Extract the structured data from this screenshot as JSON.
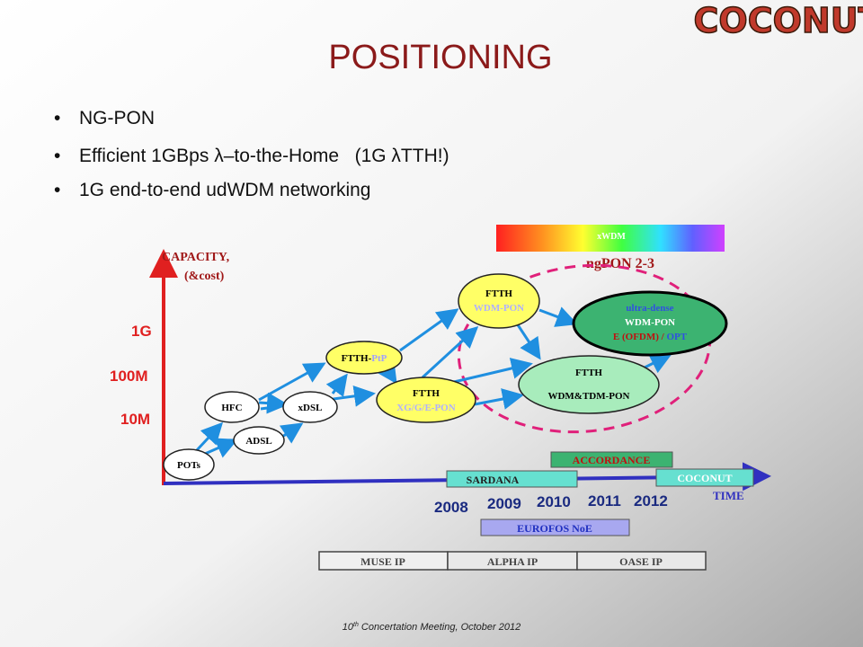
{
  "logo": "COCONUT",
  "title": "POSITIONING",
  "bullets": [
    "NG-PON",
    "Efficient 1GBps λ–to-the-Home   (1G λTTH!)",
    "1G end-to-end udWDM networking"
  ],
  "axis": {
    "y_label": [
      "CAPACITY,",
      "(&cost)"
    ],
    "levels": [
      "1G",
      "100M",
      "10M"
    ],
    "x_label": "TIME",
    "years": [
      "2008",
      "2009",
      "2010",
      "2011",
      "2012"
    ]
  },
  "spectrum_label": "xWDM",
  "group_label": "ngPON 2-3",
  "nodes": [
    {
      "lines": [
        "POTs"
      ]
    },
    {
      "lines": [
        "ADSL"
      ]
    },
    {
      "lines": [
        "HFC"
      ]
    },
    {
      "lines": [
        "xDSL"
      ]
    },
    {
      "lines": [
        "FTTH-",
        "PtP"
      ]
    },
    {
      "lines": [
        "FTTH",
        "XG/G/E-PON"
      ]
    },
    {
      "lines": [
        "FTTH",
        "WDM-PON"
      ]
    },
    {
      "lines": [
        "FTTH",
        "WDM&TDM-PON"
      ]
    },
    {
      "lines": [
        "ultra-dense",
        "WDM-PON",
        "E (OFDM) / ",
        "OPT"
      ]
    }
  ],
  "projects": [
    "ACCORDANCE",
    "SARDANA",
    "COCONUT",
    "EUROFOS NoE",
    "MUSE IP",
    "ALPHA IP",
    "OASE IP"
  ],
  "footer": [
    "10",
    "th",
    " Concertation Meeting, October 2012"
  ]
}
